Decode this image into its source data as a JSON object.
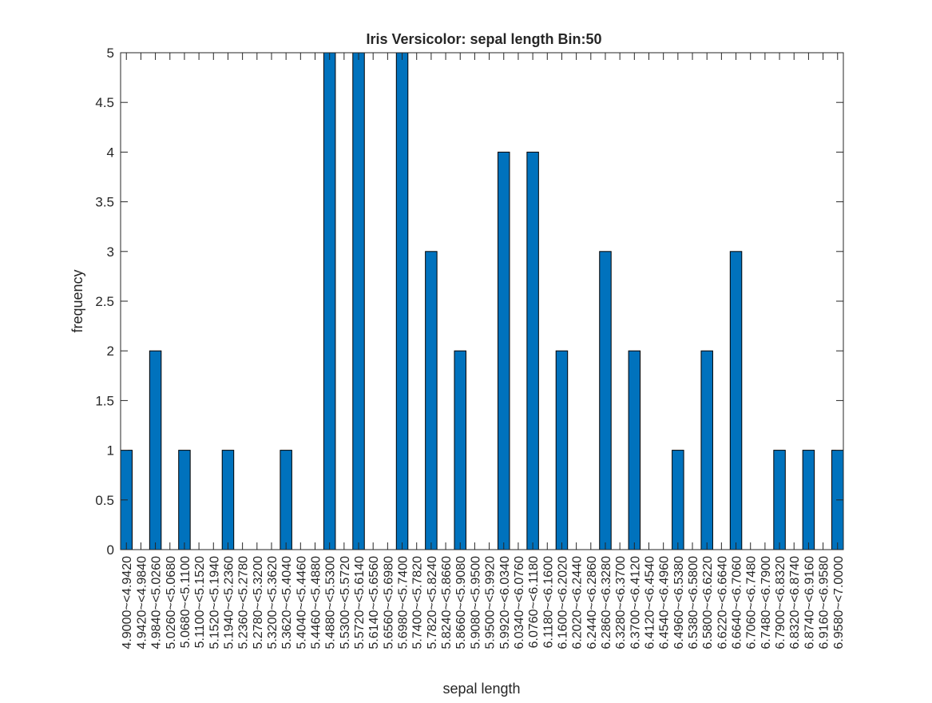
{
  "chart_data": {
    "type": "bar",
    "title": "Iris Versicolor: sepal length Bin:50",
    "xlabel": "sepal length",
    "ylabel": "frequency",
    "ylim": [
      0,
      5
    ],
    "yticks": [
      "0",
      "0.5",
      "1",
      "1.5",
      "2",
      "2.5",
      "3",
      "3.5",
      "4",
      "4.5",
      "5"
    ],
    "grid": false,
    "bar_color": "#0072BD",
    "categories": [
      "4.9000~<4.9420",
      "4.9420~<4.9840",
      "4.9840~<5.0260",
      "5.0260~<5.0680",
      "5.0680~<5.1100",
      "5.1100~<5.1520",
      "5.1520~<5.1940",
      "5.1940~<5.2360",
      "5.2360~<5.2780",
      "5.2780~<5.3200",
      "5.3200~<5.3620",
      "5.3620~<5.4040",
      "5.4040~<5.4460",
      "5.4460~<5.4880",
      "5.4880~<5.5300",
      "5.5300~<5.5720",
      "5.5720~<5.6140",
      "5.6140~<5.6560",
      "5.6560~<5.6980",
      "5.6980~<5.7400",
      "5.7400~<5.7820",
      "5.7820~<5.8240",
      "5.8240~<5.8660",
      "5.8660~<5.9080",
      "5.9080~<5.9500",
      "5.9500~<5.9920",
      "5.9920~<6.0340",
      "6.0340~<6.0760",
      "6.0760~<6.1180",
      "6.1180~<6.1600",
      "6.1600~<6.2020",
      "6.2020~<6.2440",
      "6.2440~<6.2860",
      "6.2860~<6.3280",
      "6.3280~<6.3700",
      "6.3700~<6.4120",
      "6.4120~<6.4540",
      "6.4540~<6.4960",
      "6.4960~<6.5380",
      "6.5380~<6.5800",
      "6.5800~<6.6220",
      "6.6220~<6.6640",
      "6.6640~<6.7060",
      "6.7060~<6.7480",
      "6.7480~<6.7900",
      "6.7900~<6.8320",
      "6.8320~<6.8740",
      "6.8740~<6.9160",
      "6.9160~<6.9580",
      "6.9580~<7.0000"
    ],
    "values": [
      1,
      0,
      2,
      0,
      1,
      0,
      0,
      1,
      0,
      0,
      0,
      1,
      0,
      0,
      5,
      0,
      5,
      0,
      0,
      5,
      0,
      3,
      0,
      2,
      0,
      0,
      4,
      0,
      4,
      0,
      2,
      0,
      0,
      3,
      0,
      2,
      0,
      0,
      1,
      0,
      2,
      0,
      3,
      0,
      0,
      1,
      0,
      1,
      0,
      1
    ]
  }
}
